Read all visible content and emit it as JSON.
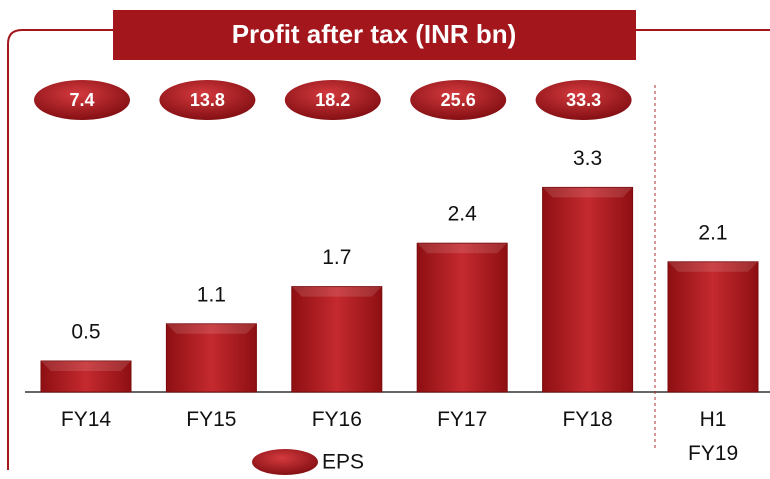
{
  "chart_data": {
    "type": "bar",
    "title": "Profit after tax (INR bn)",
    "categories": [
      "FY14",
      "FY15",
      "FY16",
      "FY17",
      "FY18",
      "H1 FY19"
    ],
    "values": [
      0.5,
      1.1,
      1.7,
      2.4,
      3.3,
      2.1
    ],
    "color": "#b01e23",
    "eps_series": {
      "name": "EPS",
      "color": "#a3161b",
      "values": [
        7.4,
        13.8,
        18.2,
        25.6,
        33.3,
        null
      ]
    }
  }
}
